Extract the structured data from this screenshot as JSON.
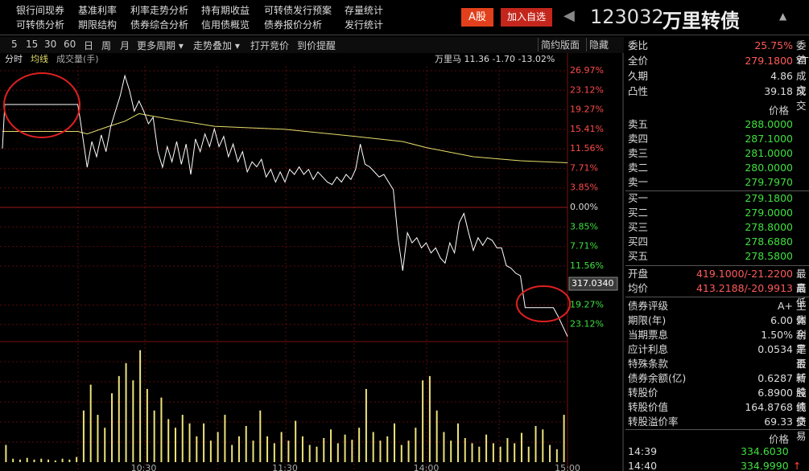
{
  "menu": {
    "row1": [
      "银行间现券",
      "基准利率",
      "利率走势分析",
      "持有期收益",
      "可转债发行预案",
      "存量统计"
    ],
    "row2": [
      "可转债分析",
      "期限结构",
      "债券综合分析",
      "信用债概览",
      "债券报价分析",
      "发行统计"
    ]
  },
  "header": {
    "stock_tab": "A股",
    "add_watch": "加入自选",
    "code": "123032",
    "name": "万里转债"
  },
  "toolbar": {
    "periods": [
      "5",
      "15",
      "30",
      "60",
      "日",
      "周",
      "月",
      "更多周期 ▾",
      "走势叠加 ▾",
      "打开竞价",
      "到价提醒"
    ],
    "right": [
      "简约版面",
      "隐藏"
    ]
  },
  "chart_data": {
    "type": "line",
    "info": "万里马 11.36 -1.70 -13.02%",
    "volume_label": "成交量(手)",
    "price_box": "317.0340",
    "xlim": [
      0,
      240
    ],
    "xticks": [
      {
        "value": 60,
        "label": "10:30"
      },
      {
        "value": 120,
        "label": "11:30"
      },
      {
        "value": 180,
        "label": "14:00"
      },
      {
        "value": 240,
        "label": "15:00"
      }
    ],
    "ylim": [
      -26.97,
      26.97
    ],
    "yticks": [
      {
        "value": 26.97,
        "label": "26.97%"
      },
      {
        "value": 23.12,
        "label": "23.12%"
      },
      {
        "value": 19.27,
        "label": "19.27%"
      },
      {
        "value": 15.41,
        "label": "15.41%"
      },
      {
        "value": 11.56,
        "label": "11.56%"
      },
      {
        "value": 7.71,
        "label": "7.71%"
      },
      {
        "value": 3.85,
        "label": "3.85%"
      },
      {
        "value": 0,
        "label": "0.00%"
      },
      {
        "value": -3.85,
        "label": "3.85%"
      },
      {
        "value": -7.71,
        "label": "7.71%"
      },
      {
        "value": -11.56,
        "label": "11.56%"
      },
      {
        "value": -19.27,
        "label": "19.27%"
      },
      {
        "value": -23.12,
        "label": "23.12%"
      }
    ],
    "series": [
      {
        "name": "分时",
        "color": "#ffffff",
        "x": [
          0,
          1,
          32,
          33,
          36,
          38,
          40,
          42,
          44,
          46,
          48,
          50,
          52,
          54,
          56,
          58,
          60,
          62,
          64,
          66,
          68,
          70,
          72,
          74,
          76,
          78,
          80,
          82,
          84,
          86,
          88,
          90,
          92,
          94,
          96,
          98,
          100,
          102,
          104,
          106,
          108,
          110,
          112,
          114,
          116,
          118,
          120,
          122,
          124,
          126,
          128,
          130,
          132,
          134,
          136,
          138,
          140,
          142,
          144,
          146,
          148,
          150,
          152,
          154,
          156,
          158,
          160,
          162,
          164,
          166,
          168,
          170,
          172,
          174,
          176,
          178,
          180,
          182,
          184,
          186,
          188,
          190,
          192,
          194,
          196,
          198,
          200,
          202,
          204,
          206,
          208,
          210,
          212,
          214,
          216,
          218,
          220,
          222,
          234,
          236,
          240
        ],
        "values": [
          11.6,
          20.3,
          20.3,
          17.5,
          7.9,
          13,
          10,
          14.3,
          11,
          16,
          19,
          22,
          26,
          23,
          19,
          21,
          19,
          16.5,
          17.8,
          11,
          7.9,
          12,
          9,
          13,
          8.5,
          12.5,
          6.5,
          13.5,
          11,
          14.5,
          12,
          15.5,
          12,
          14,
          10,
          12.5,
          9,
          11,
          7,
          9,
          8,
          9.5,
          6,
          7.5,
          5,
          7,
          5,
          7.5,
          6.5,
          8,
          6.5,
          7.5,
          5.5,
          7,
          6,
          5,
          4.5,
          6,
          5,
          6.5,
          5.5,
          7.5,
          12.5,
          8.5,
          8,
          7,
          6,
          6.5,
          5,
          3.5,
          -6,
          -12.5,
          -5,
          -7,
          -6,
          -8,
          -7,
          -9,
          -8,
          -10,
          -11,
          -7,
          -9,
          -3,
          -1.2,
          -5,
          -8.5,
          -6,
          -7.5,
          -6,
          -6.5,
          -8,
          -8,
          -11.5,
          -12,
          -13,
          -13.5,
          -19.8,
          -19.8,
          -21.5,
          -25.5
        ]
      },
      {
        "name": "均线",
        "color": "#e6df6a",
        "x": [
          0,
          10,
          32,
          36,
          44,
          52,
          58,
          70,
          90,
          120,
          150,
          170,
          180,
          200,
          220,
          240
        ],
        "values": [
          15,
          15,
          15,
          14.5,
          15.8,
          17,
          18.5,
          17.5,
          16,
          15.4,
          14,
          13,
          11.8,
          10,
          9.2,
          8.8
        ]
      }
    ],
    "volume": {
      "color": "#ece27a",
      "vlim": [
        0,
        140
      ],
      "values": [
        20,
        4,
        3,
        5,
        3,
        4,
        3,
        2,
        4,
        3,
        6,
        60,
        90,
        55,
        40,
        80,
        100,
        115,
        95,
        130,
        85,
        60,
        75,
        50,
        40,
        55,
        45,
        30,
        45,
        25,
        35,
        55,
        20,
        30,
        42,
        25,
        60,
        30,
        22,
        35,
        25,
        48,
        30,
        20,
        18,
        28,
        38,
        22,
        32,
        26,
        40,
        85,
        35,
        25,
        30,
        45,
        20,
        25,
        40,
        95,
        100,
        60,
        35,
        25,
        45,
        28,
        22,
        18,
        32,
        22,
        18,
        28,
        22,
        34,
        18,
        42,
        38,
        20,
        15,
        55
      ]
    }
  },
  "quote": {
    "top": [
      {
        "label": "委比",
        "value": "25.75%",
        "extra": "委差"
      },
      {
        "label": "全价",
        "value": "279.1800",
        "extra": "YTM"
      },
      {
        "label": "久期",
        "value": "4.86",
        "extra": "成交"
      },
      {
        "label": "凸性",
        "value": "39.18",
        "extra": "成交"
      }
    ],
    "book_header": "价格",
    "sell": [
      {
        "label": "卖五",
        "value": "288.0000"
      },
      {
        "label": "卖四",
        "value": "287.1000"
      },
      {
        "label": "卖三",
        "value": "281.0000"
      },
      {
        "label": "卖二",
        "value": "280.0000"
      },
      {
        "label": "卖一",
        "value": "279.7970"
      }
    ],
    "buy": [
      {
        "label": "买一",
        "value": "279.1800"
      },
      {
        "label": "买二",
        "value": "279.0000"
      },
      {
        "label": "买三",
        "value": "278.8000"
      },
      {
        "label": "买四",
        "value": "278.6880"
      },
      {
        "label": "买五",
        "value": "278.5800"
      }
    ],
    "open_avg": [
      {
        "label": "开盘",
        "value": "419.1000/-21.2200",
        "extra": "最高"
      },
      {
        "label": "均价",
        "value": "413.2188/-20.9913",
        "extra": "最低"
      }
    ],
    "info": [
      {
        "label": "债券评级",
        "value": "A+",
        "extra": "主体"
      },
      {
        "label": "期限(年)",
        "value": "6.00",
        "extra": "剩余"
      },
      {
        "label": "当期票息",
        "value": "1.50%",
        "extra": "利率"
      },
      {
        "label": "应计利息",
        "value": "0.0534",
        "extra": "是否"
      },
      {
        "label": "特殊条款",
        "value": "",
        "extra": "最新"
      },
      {
        "label": "债券余额(亿)",
        "value": "0.6287",
        "extra": "转股"
      },
      {
        "label": "转股价",
        "value": "6.8900",
        "extra": "纯债"
      },
      {
        "label": "转股价值",
        "value": "164.8768",
        "extra": "纯债"
      },
      {
        "label": "转股溢价率",
        "value": "69.33",
        "extra": "交易"
      }
    ],
    "ticks_header": "价格",
    "ticks": [
      {
        "time": "14:39",
        "price": "334.6030"
      },
      {
        "time": "14:40",
        "price": "334.9990",
        "arrow": "↑"
      }
    ]
  }
}
